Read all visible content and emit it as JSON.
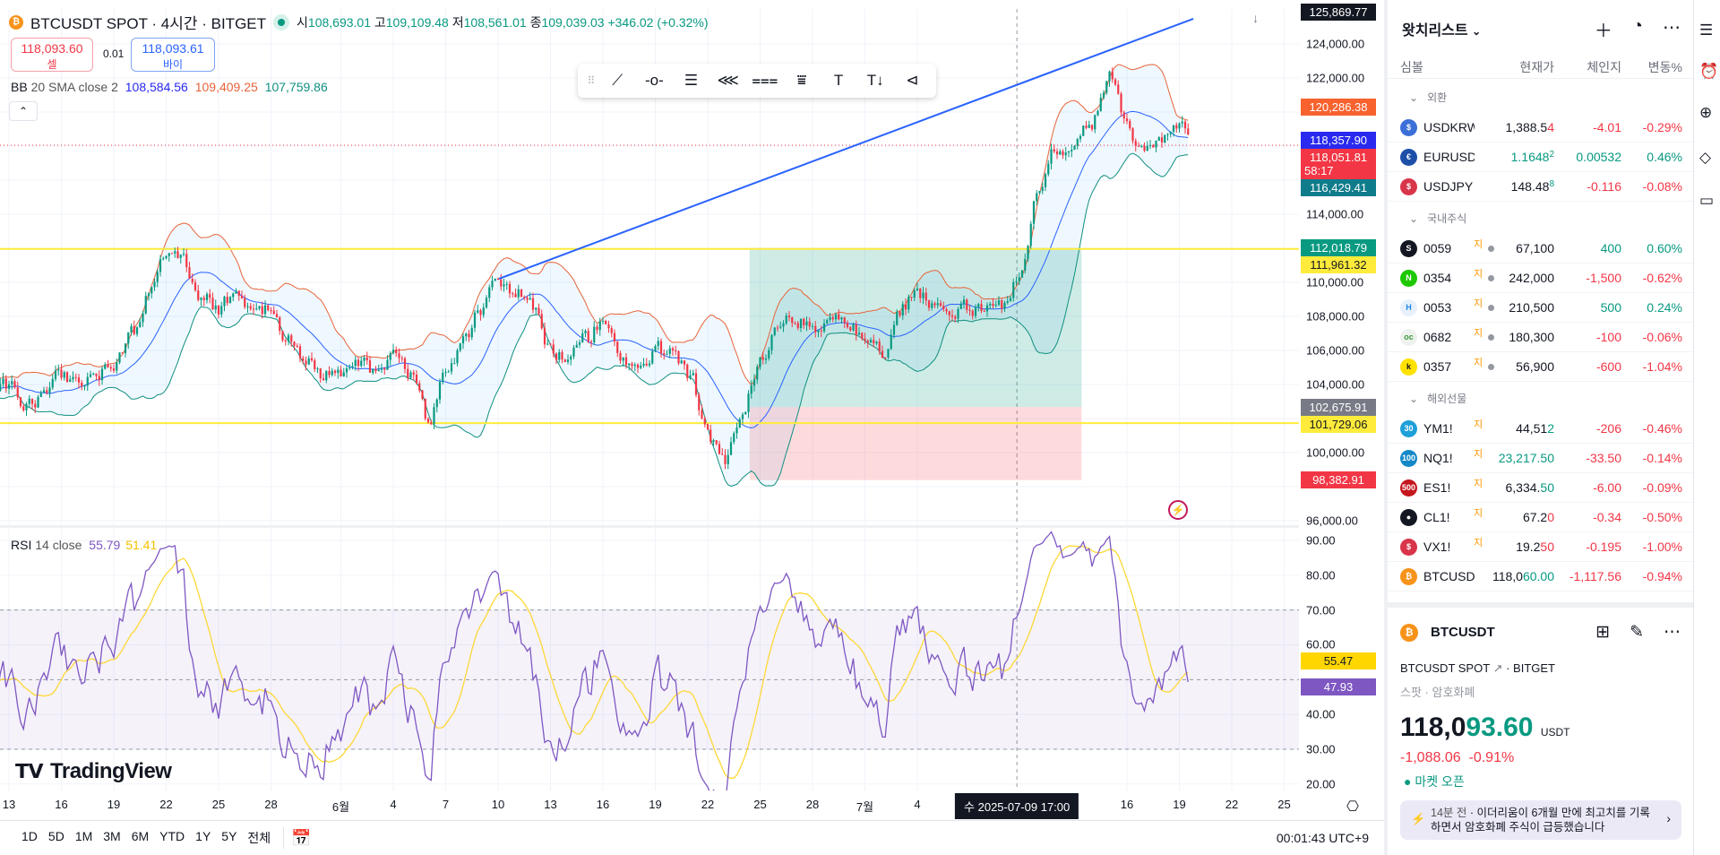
{
  "header": {
    "symbol_title": "BTCUSDT SPOT · 4시간 · BITGET",
    "o_label": "시",
    "o": "108,693.01",
    "h_label": "고",
    "h": "109,109.48",
    "l_label": "저",
    "l": "108,561.01",
    "c_label": "종",
    "c": "109,039.03",
    "change": "+346.02 (+0.32%)"
  },
  "trade": {
    "sell_price": "118,093.60",
    "sell_label": "셀",
    "spread": "0.01",
    "buy_price": "118,093.61",
    "buy_label": "바이"
  },
  "bb_legend": {
    "name": "BB",
    "params": "20 SMA close 2",
    "basis": "108,584.56",
    "upper": "109,409.25",
    "lower": "107,759.86"
  },
  "collapse_icon": "chevron-up-icon",
  "drawing_toolbar": [
    "trend-line-icon",
    "horizontal-ray-icon",
    "parallel-channel-icon",
    "pitchfork-icon",
    "fib-retracement-icon",
    "fib-extension-icon",
    "text-icon",
    "text-note-icon",
    "more-tools-icon"
  ],
  "price_axis": {
    "labels": [
      "124,000.00",
      "122,000.00",
      "114,000.00",
      "110,000.00",
      "108,000.00",
      "106,000.00",
      "104,000.00",
      "100,000.00",
      "96,000.00"
    ],
    "label_values": [
      124000,
      122000,
      114000,
      110000,
      108000,
      106000,
      104000,
      100000,
      96000
    ],
    "tags": [
      {
        "text": "125,869.77",
        "value": 125869.77,
        "color": "#131722"
      },
      {
        "text": "120,286.38",
        "value": 120286.38,
        "color": "#f7622e"
      },
      {
        "text": "118,357.90",
        "value": 118357.9,
        "color": "#2929f0"
      },
      {
        "text": "118,051.81",
        "value": 118051.81,
        "color": "#f23645",
        "countdown": "58:17"
      },
      {
        "text": "116,429.41",
        "value": 116429.41,
        "color": "#0f7c8c"
      },
      {
        "text": "112,018.79",
        "value": 112018.79,
        "color": "#089981"
      },
      {
        "text": "111,961.32",
        "value": 111961.32,
        "color": "#ffeb3b",
        "dark": true
      },
      {
        "text": "102,675.91",
        "value": 102675.91,
        "color": "#787b86"
      },
      {
        "text": "101,729.06",
        "value": 101729.06,
        "color": "#ffeb3b",
        "dark": true
      },
      {
        "text": "98,382.91",
        "value": 98382.91,
        "color": "#f23645"
      }
    ]
  },
  "rsi": {
    "name": "RSI",
    "params": "14 close",
    "value": "55.79",
    "ma": "51.41",
    "axis_labels": [
      "90.00",
      "80.00",
      "70.00",
      "60.00",
      "40.00",
      "30.00",
      "20.00"
    ],
    "axis_values": [
      90,
      80,
      70,
      60,
      40,
      30,
      20
    ],
    "tags": [
      {
        "text": "55.47",
        "value": 55.47,
        "color": "#ffd600",
        "dark": true
      },
      {
        "text": "47.93",
        "value": 47.93,
        "color": "#7e57c2"
      }
    ]
  },
  "time_axis": {
    "labels": [
      {
        "t": "13",
        "day": 0
      },
      {
        "t": "16",
        "day": 3
      },
      {
        "t": "19",
        "day": 6
      },
      {
        "t": "22",
        "day": 9
      },
      {
        "t": "25",
        "day": 12
      },
      {
        "t": "28",
        "day": 15
      },
      {
        "t": "6월",
        "day": 19
      },
      {
        "t": "4",
        "day": 22
      },
      {
        "t": "7",
        "day": 25
      },
      {
        "t": "10",
        "day": 28
      },
      {
        "t": "13",
        "day": 31
      },
      {
        "t": "16",
        "day": 34
      },
      {
        "t": "19",
        "day": 37
      },
      {
        "t": "22",
        "day": 40
      },
      {
        "t": "25",
        "day": 43
      },
      {
        "t": "28",
        "day": 46
      },
      {
        "t": "7월",
        "day": 49
      },
      {
        "t": "4",
        "day": 52
      },
      {
        "t": "16",
        "day": 64
      },
      {
        "t": "19",
        "day": 67
      },
      {
        "t": "22",
        "day": 70
      },
      {
        "t": "25",
        "day": 73
      }
    ],
    "crosshair_label": "수 2025-07-09   17:00",
    "crosshair_day": 57.7
  },
  "bottom_bar": {
    "ranges": [
      "1D",
      "5D",
      "1M",
      "3M",
      "6M",
      "YTD",
      "1Y",
      "5Y",
      "전체"
    ],
    "clock": "00:01:43 UTC+9"
  },
  "brand": "TradingView",
  "drawings": {
    "horizontal_levels": [
      111961.32,
      101729.06
    ],
    "trendline": {
      "start": {
        "day": 28.05,
        "price": 110210
      },
      "end": {
        "day": 67.8,
        "price": 125474
      }
    },
    "long_position": {
      "start_day": 42.4,
      "end_day": 61.4,
      "target": 112018.79,
      "entry": 102675.91,
      "stop": 98382.91
    },
    "current_price_line": 118051.81
  },
  "chart_data": {
    "type": "candlestick",
    "timeframe": "4h",
    "price_path": [
      [
        -5,
        103500
      ],
      [
        0,
        104000
      ],
      [
        1,
        102800
      ],
      [
        2,
        103500
      ],
      [
        3,
        104500
      ],
      [
        5,
        104200
      ],
      [
        6,
        105500
      ],
      [
        7,
        106800
      ],
      [
        8,
        109500
      ],
      [
        9,
        111500
      ],
      [
        10,
        111000
      ],
      [
        11,
        109000
      ],
      [
        12,
        108500
      ],
      [
        13,
        109500
      ],
      [
        14,
        108000
      ],
      [
        15,
        108500
      ],
      [
        16,
        106500
      ],
      [
        17,
        105500
      ],
      [
        18,
        104500
      ],
      [
        19,
        104500
      ],
      [
        20,
        105000
      ],
      [
        21,
        104800
      ],
      [
        22,
        105500
      ],
      [
        23,
        104500
      ],
      [
        24,
        101800
      ],
      [
        25,
        104500
      ],
      [
        26,
        106500
      ],
      [
        27,
        108500
      ],
      [
        28,
        110000
      ],
      [
        29,
        109500
      ],
      [
        30,
        108500
      ],
      [
        31,
        106000
      ],
      [
        32,
        105500
      ],
      [
        33,
        106500
      ],
      [
        34,
        107800
      ],
      [
        35,
        106000
      ],
      [
        36,
        104500
      ],
      [
        37,
        106000
      ],
      [
        38,
        105800
      ],
      [
        39,
        104500
      ],
      [
        40,
        101000
      ],
      [
        41,
        99500
      ],
      [
        42,
        102500
      ],
      [
        43,
        105500
      ],
      [
        44,
        107500
      ],
      [
        45,
        108000
      ],
      [
        46,
        107300
      ],
      [
        47,
        107600
      ],
      [
        48,
        107500
      ],
      [
        49,
        107000
      ],
      [
        50,
        106000
      ],
      [
        51,
        108500
      ],
      [
        52,
        109500
      ],
      [
        53,
        108500
      ],
      [
        54,
        108000
      ],
      [
        55,
        108400
      ],
      [
        56,
        108500
      ],
      [
        57,
        108400
      ],
      [
        58,
        111000
      ],
      [
        59,
        116000
      ],
      [
        60,
        118000
      ],
      [
        61,
        117800
      ],
      [
        62,
        119500
      ],
      [
        63,
        122300
      ],
      [
        64,
        119000
      ],
      [
        65,
        117500
      ],
      [
        66,
        118500
      ],
      [
        67,
        119500
      ],
      [
        67.5,
        118100
      ]
    ],
    "ylim": [
      95500,
      126500
    ],
    "rsi_ylim": [
      17,
      92
    ],
    "colors": {
      "up": "#089981",
      "down": "#f23645",
      "bb_basis": "#2962ff",
      "bb_upper": "#e8643a",
      "bb_lower": "#0f8f80",
      "rsi": "#7e57c2",
      "rsi_ma": "#fdd835",
      "level": "#ffeb3b",
      "trend": "#2962ff"
    }
  },
  "watchlist": {
    "title": "왓치리스트",
    "columns": {
      "symbol": "심볼",
      "price": "현재가",
      "change": "체인지",
      "pct": "변동%"
    },
    "sections": [
      {
        "name": "외환",
        "rows": [
          {
            "sym": "USDKRW",
            "icon": "🇺",
            "icon_bg": "#3c6fd8",
            "icon_text": "$",
            "main": "1,388.5",
            "tail": "4",
            "tail_color": "#f23645",
            "main_color": "#131722",
            "chg": "-4.01",
            "pct": "-0.29%",
            "dir": "down"
          },
          {
            "sym": "EURUSD",
            "icon_bg": "#1e4fa8",
            "icon_text": "€",
            "main": "1.1648",
            "tail": "2",
            "tail_color": "#089981",
            "main_color": "#089981",
            "small_tail": true,
            "chg": "0.00532",
            "pct": "0.46%",
            "dir": "up"
          },
          {
            "sym": "USDJPY",
            "icon_bg": "#d8354a",
            "icon_text": "$",
            "main": "148.48",
            "tail": "8",
            "tail_color": "#089981",
            "main_color": "#131722",
            "small_tail": true,
            "chg": "-0.116",
            "pct": "-0.08%",
            "dir": "down"
          }
        ]
      },
      {
        "name": "국내주식",
        "rows": [
          {
            "sym": "0059",
            "sup": "지",
            "icon_bg": "#131722",
            "icon_text": "S",
            "main": "67,100",
            "tail": "",
            "chg": "400",
            "pct": "0.60%",
            "dir": "up",
            "dot": true
          },
          {
            "sym": "0354",
            "sup": "지",
            "icon_bg": "#1ec800",
            "icon_text": "N",
            "main": "242,000",
            "tail": "",
            "chg": "-1,500",
            "pct": "-0.62%",
            "dir": "down",
            "dot": true
          },
          {
            "sym": "0053",
            "sup": "지",
            "icon_bg": "#e8f1fb",
            "icon_fg": "#1e88e5",
            "icon_text": "H",
            "main": "210,500",
            "tail": "",
            "chg": "500",
            "pct": "0.24%",
            "dir": "up",
            "dot": true
          },
          {
            "sym": "0682",
            "sup": "지",
            "icon_bg": "#eef2ee",
            "icon_fg": "#3c9a3c",
            "icon_text": "oc",
            "main": "180,300",
            "tail": "",
            "chg": "-100",
            "pct": "-0.06%",
            "dir": "down",
            "dot": true
          },
          {
            "sym": "0357",
            "sup": "지",
            "icon_bg": "#ffe100",
            "icon_fg": "#131722",
            "icon_text": "k",
            "main": "56,900",
            "tail": "",
            "chg": "-600",
            "pct": "-1.04%",
            "dir": "down",
            "dot": true
          }
        ]
      },
      {
        "name": "해외선물",
        "rows": [
          {
            "sym": "YM1!",
            "sup": "지",
            "icon_bg": "#1e9fd8",
            "icon_text": "30",
            "main": "44,51",
            "tail": "2",
            "tail_color": "#089981",
            "main_color": "#131722",
            "chg": "-206",
            "pct": "-0.46%",
            "dir": "down"
          },
          {
            "sym": "NQ1!",
            "sup": "지",
            "icon_bg": "#1488c7",
            "icon_text": "100",
            "main": "23,217.50",
            "tail": "",
            "main_color": "#089981",
            "chg": "-33.50",
            "pct": "-0.14%",
            "dir": "down"
          },
          {
            "sym": "ES1!",
            "sup": "지",
            "icon_bg": "#c4161c",
            "icon_text": "500",
            "main": "6,334.",
            "tail": "50",
            "tail_color": "#089981",
            "main_color": "#131722",
            "chg": "-6.00",
            "pct": "-0.09%",
            "dir": "down"
          },
          {
            "sym": "CL1!",
            "sup": "지",
            "icon_bg": "#131722",
            "icon_text": "●",
            "main": "67.2",
            "tail": "0",
            "tail_color": "#f23645",
            "main_color": "#131722",
            "chg": "-0.34",
            "pct": "-0.50%",
            "dir": "down"
          },
          {
            "sym": "VX1!",
            "sup": "지",
            "icon_bg": "#d8354a",
            "icon_text": "$",
            "main": "19.2",
            "tail": "50",
            "tail_color": "#f23645",
            "main_color": "#131722",
            "chg": "-0.195",
            "pct": "-1.00%",
            "dir": "down"
          },
          {
            "sym": "BTCUSD",
            "icon_bg": "#f7931a",
            "icon_text": "₿",
            "main": "118,0",
            "tail": "60.00",
            "tail_color": "#089981",
            "main_color": "#131722",
            "chg": "-1,117.56",
            "pct": "-0.94%",
            "dir": "down"
          }
        ]
      }
    ]
  },
  "details": {
    "symbol": "BTCUSDT",
    "logo_text": "₿",
    "full_name": "BTCUSDT SPOT",
    "exchange": "BITGET",
    "type": "스팟",
    "category": "암호화폐",
    "price_main": "118,0",
    "price_tail": "93.60",
    "currency": "USDT",
    "change": "-1,088.06",
    "change_pct": "-0.91%",
    "market_status": "마켓 오픈",
    "news_time": "14분 전",
    "news_text": "이더리움이 6개월 만에 최고치를 기록하면서 암호화폐 주식이 급등했습니다"
  }
}
